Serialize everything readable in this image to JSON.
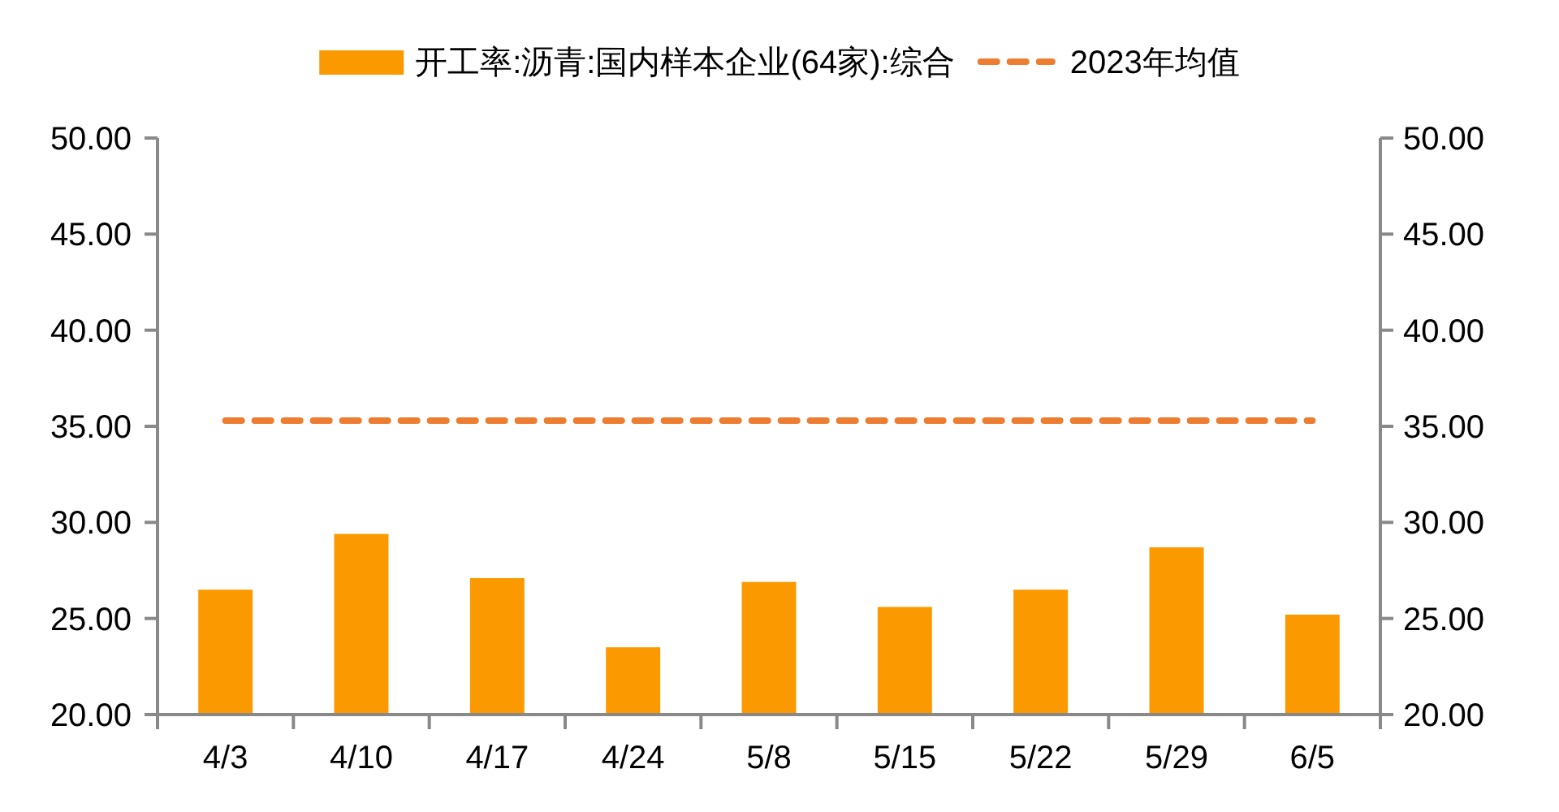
{
  "chart_data": {
    "type": "bar",
    "categories": [
      "4/3",
      "4/10",
      "4/17",
      "4/24",
      "5/8",
      "5/15",
      "5/22",
      "5/29",
      "6/5"
    ],
    "series": [
      {
        "name": "开工率:沥青:国内样本企业(64家):综合",
        "color": "#fb9a00",
        "values": [
          26.5,
          29.4,
          27.1,
          23.5,
          26.9,
          25.6,
          26.5,
          28.7,
          25.2
        ]
      },
      {
        "name": "2023年均值",
        "type": "line",
        "color": "#ed7d31",
        "line_style": "dashed",
        "values": [
          35.3,
          35.3,
          35.3,
          35.3,
          35.3,
          35.3,
          35.3,
          35.3,
          35.3
        ]
      }
    ],
    "ylim": [
      20,
      50
    ],
    "yticks": [
      {
        "value": 20,
        "label": "20.00"
      },
      {
        "value": 25,
        "label": "25.00"
      },
      {
        "value": 30,
        "label": "30.00"
      },
      {
        "value": 35,
        "label": "35.00"
      },
      {
        "value": 40,
        "label": "40.00"
      },
      {
        "value": 45,
        "label": "45.00"
      },
      {
        "value": 50,
        "label": "50.00"
      }
    ],
    "y2lim": [
      20,
      50
    ],
    "y2ticks": [
      {
        "value": 20,
        "label": "20.00"
      },
      {
        "value": 25,
        "label": "25.00"
      },
      {
        "value": 30,
        "label": "30.00"
      },
      {
        "value": 35,
        "label": "35.00"
      },
      {
        "value": 40,
        "label": "40.00"
      },
      {
        "value": 45,
        "label": "45.00"
      },
      {
        "value": 50,
        "label": "50.00"
      }
    ],
    "legend": "top",
    "grid": false
  }
}
